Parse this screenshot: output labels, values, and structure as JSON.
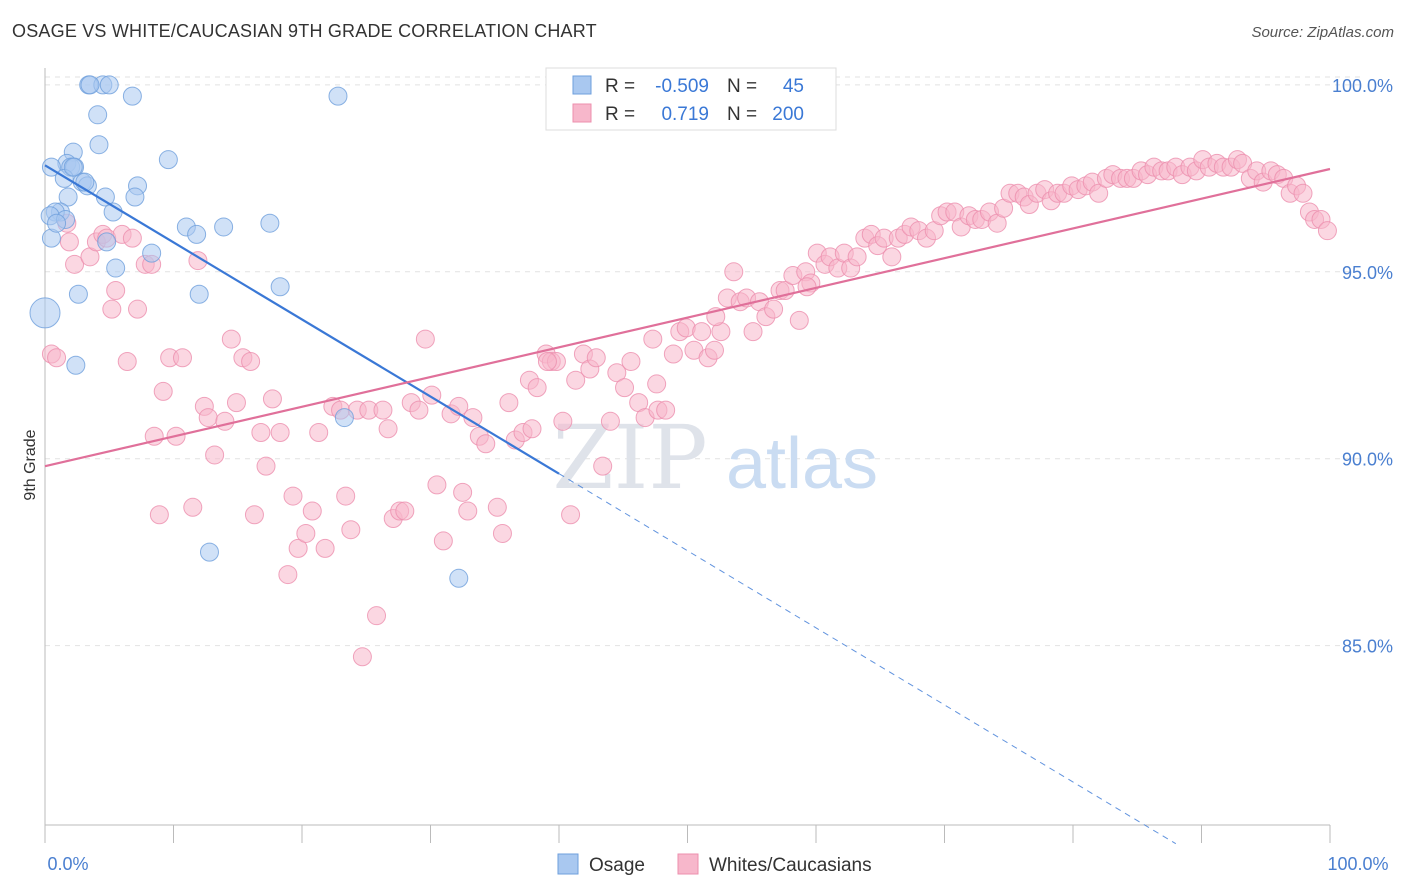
{
  "header": {
    "title": "OSAGE VS WHITE/CAUCASIAN 9TH GRADE CORRELATION CHART",
    "source": "Source: ZipAtlas.com"
  },
  "watermark": {
    "zip": "ZIP",
    "atlas": "atlas"
  },
  "legend_top": {
    "rows": [
      {
        "r_label": "R =",
        "r_value": "-0.509",
        "n_label": "N =",
        "n_value": "45",
        "color": "#a9c8f0"
      },
      {
        "r_label": "R =",
        "r_value": "0.719",
        "n_label": "N =",
        "n_value": "200",
        "color": "#f7b7cb"
      }
    ]
  },
  "colors": {
    "osage_fill": "#a9c8f0",
    "osage_stroke": "#6e9fdc",
    "osage_line": "#3a78d6",
    "white_fill": "#f7b7cb",
    "white_stroke": "#ec8fae",
    "white_line": "#e0709a",
    "tick_label": "#4a7fd0",
    "grid": "#e2e2e2"
  },
  "chart_data": {
    "type": "scatter",
    "title": "OSAGE VS WHITE/CAUCASIAN 9TH GRADE CORRELATION CHART",
    "xlabel": "",
    "ylabel": "9th Grade",
    "xlim": [
      0,
      100
    ],
    "ylim": [
      80.2,
      100.8
    ],
    "x_tick_labels": [
      "0.0%",
      "100.0%"
    ],
    "y_ticks": [
      85,
      90,
      95,
      100
    ],
    "y_tick_labels": [
      "85.0%",
      "90.0%",
      "95.0%",
      "100.0%"
    ],
    "grid": true,
    "legend_position": "top-center and bottom",
    "series": [
      {
        "name": "Osage",
        "r": -0.509,
        "n": 45,
        "trend": {
          "x0": 0,
          "y0": 97.85,
          "x1": 40,
          "y1": 89.6,
          "dash_to_x": 88
        },
        "points": [
          [
            3.4,
            100
          ],
          [
            4.5,
            100
          ],
          [
            5,
            100
          ],
          [
            3.5,
            100
          ],
          [
            6.8,
            99.7
          ],
          [
            22.8,
            99.7
          ],
          [
            4.1,
            99.2
          ],
          [
            4.2,
            98.4
          ],
          [
            2.2,
            98.2
          ],
          [
            9.6,
            98
          ],
          [
            1.7,
            97.9
          ],
          [
            2,
            97.8
          ],
          [
            0.5,
            97.8
          ],
          [
            2.3,
            97.8
          ],
          [
            1.5,
            97.5
          ],
          [
            2.9,
            97.4
          ],
          [
            7.2,
            97.3
          ],
          [
            3.3,
            97.3
          ],
          [
            1.8,
            97
          ],
          [
            4.7,
            97
          ],
          [
            7,
            97
          ],
          [
            1.2,
            96.6
          ],
          [
            0.8,
            96.6
          ],
          [
            0.4,
            96.5
          ],
          [
            5.3,
            96.6
          ],
          [
            11,
            96.2
          ],
          [
            13.9,
            96.2
          ],
          [
            17.5,
            96.3
          ],
          [
            11.8,
            96
          ],
          [
            0.5,
            95.9
          ],
          [
            4.8,
            95.8
          ],
          [
            8.3,
            95.5
          ],
          [
            5.5,
            95.1
          ],
          [
            18.3,
            94.6
          ],
          [
            12,
            94.4
          ],
          [
            2.6,
            94.4
          ],
          [
            0,
            93.9
          ],
          [
            2.4,
            92.5
          ],
          [
            23.3,
            91.1
          ],
          [
            12.8,
            87.5
          ],
          [
            32.2,
            86.8
          ],
          [
            1.6,
            96.4
          ],
          [
            2.2,
            97.8
          ],
          [
            0.9,
            96.3
          ],
          [
            3.1,
            97.4
          ]
        ]
      },
      {
        "name": "Whites/Caucasians",
        "r": 0.719,
        "n": 200,
        "trend": {
          "x0": 0,
          "y0": 89.8,
          "x1": 100,
          "y1": 97.75
        },
        "points": [
          [
            0.5,
            92.8
          ],
          [
            0.9,
            92.7
          ],
          [
            1.7,
            96.3
          ],
          [
            1.9,
            95.8
          ],
          [
            2.3,
            95.2
          ],
          [
            3.5,
            95.4
          ],
          [
            4,
            95.8
          ],
          [
            4.5,
            96
          ],
          [
            4.8,
            95.9
          ],
          [
            5.2,
            94
          ],
          [
            5.5,
            94.5
          ],
          [
            6,
            96
          ],
          [
            6.4,
            92.6
          ],
          [
            6.8,
            95.9
          ],
          [
            7.2,
            94
          ],
          [
            7.8,
            95.2
          ],
          [
            8.3,
            95.2
          ],
          [
            8.5,
            90.6
          ],
          [
            8.9,
            88.5
          ],
          [
            9.2,
            91.8
          ],
          [
            9.7,
            92.7
          ],
          [
            10.2,
            90.6
          ],
          [
            10.7,
            92.7
          ],
          [
            11.5,
            88.7
          ],
          [
            11.9,
            95.3
          ],
          [
            12.4,
            91.4
          ],
          [
            12.7,
            91.1
          ],
          [
            13.2,
            90.1
          ],
          [
            14,
            91
          ],
          [
            14.5,
            93.2
          ],
          [
            14.9,
            91.5
          ],
          [
            15.4,
            92.7
          ],
          [
            16,
            92.6
          ],
          [
            16.3,
            88.5
          ],
          [
            16.8,
            90.7
          ],
          [
            17.2,
            89.8
          ],
          [
            17.7,
            91.6
          ],
          [
            18.3,
            90.7
          ],
          [
            18.9,
            86.9
          ],
          [
            19.3,
            89
          ],
          [
            19.7,
            87.6
          ],
          [
            20.3,
            88
          ],
          [
            20.8,
            88.6
          ],
          [
            21.3,
            90.7
          ],
          [
            21.8,
            87.6
          ],
          [
            22.4,
            91.4
          ],
          [
            23,
            91.3
          ],
          [
            23.4,
            89
          ],
          [
            23.8,
            88.1
          ],
          [
            24.3,
            91.3
          ],
          [
            24.7,
            84.7
          ],
          [
            25.2,
            91.3
          ],
          [
            25.8,
            85.8
          ],
          [
            26.3,
            91.3
          ],
          [
            26.7,
            90.8
          ],
          [
            27.1,
            88.4
          ],
          [
            27.6,
            88.6
          ],
          [
            28,
            88.6
          ],
          [
            28.5,
            91.5
          ],
          [
            29.1,
            91.3
          ],
          [
            29.6,
            93.2
          ],
          [
            30.1,
            91.7
          ],
          [
            30.5,
            89.3
          ],
          [
            31,
            87.8
          ],
          [
            31.6,
            91.2
          ],
          [
            32.2,
            91.4
          ],
          [
            32.5,
            89.1
          ],
          [
            32.9,
            88.6
          ],
          [
            33.3,
            91.1
          ],
          [
            33.8,
            90.6
          ],
          [
            34.3,
            90.4
          ],
          [
            35.2,
            88.7
          ],
          [
            35.6,
            88
          ],
          [
            36.1,
            91.5
          ],
          [
            36.6,
            90.5
          ],
          [
            37.2,
            90.7
          ],
          [
            37.7,
            92.1
          ],
          [
            38.3,
            91.9
          ],
          [
            39,
            92.8
          ],
          [
            39.4,
            92.6
          ],
          [
            39.8,
            92.6
          ],
          [
            40.3,
            91
          ],
          [
            40.9,
            88.5
          ],
          [
            41.3,
            92.1
          ],
          [
            41.9,
            92.8
          ],
          [
            42.4,
            92.4
          ],
          [
            42.9,
            92.7
          ],
          [
            43.4,
            89.8
          ],
          [
            44,
            91
          ],
          [
            44.5,
            92.3
          ],
          [
            45.1,
            91.9
          ],
          [
            45.6,
            92.6
          ],
          [
            46.2,
            91.5
          ],
          [
            46.7,
            91.1
          ],
          [
            47.3,
            93.2
          ],
          [
            47.7,
            91.3
          ],
          [
            48.3,
            91.3
          ],
          [
            48.9,
            92.8
          ],
          [
            49.4,
            93.4
          ],
          [
            49.9,
            93.5
          ],
          [
            50.5,
            92.9
          ],
          [
            51.1,
            93.4
          ],
          [
            51.6,
            92.7
          ],
          [
            52.1,
            92.9
          ],
          [
            52.6,
            93.4
          ],
          [
            53.1,
            94.3
          ],
          [
            53.6,
            95
          ],
          [
            54.1,
            94.2
          ],
          [
            54.6,
            94.3
          ],
          [
            55.1,
            93.4
          ],
          [
            55.6,
            94.2
          ],
          [
            56.1,
            93.8
          ],
          [
            56.7,
            94
          ],
          [
            57.2,
            94.5
          ],
          [
            57.6,
            94.5
          ],
          [
            58.2,
            94.9
          ],
          [
            58.7,
            93.7
          ],
          [
            59.2,
            95
          ],
          [
            59.6,
            94.7
          ],
          [
            60.1,
            95.5
          ],
          [
            60.7,
            95.2
          ],
          [
            61.1,
            95.4
          ],
          [
            61.7,
            95.1
          ],
          [
            62.2,
            95.5
          ],
          [
            62.7,
            95.1
          ],
          [
            63.2,
            95.4
          ],
          [
            63.8,
            95.9
          ],
          [
            64.3,
            96
          ],
          [
            64.8,
            95.7
          ],
          [
            65.3,
            95.9
          ],
          [
            65.9,
            95.4
          ],
          [
            66.4,
            95.9
          ],
          [
            66.9,
            96
          ],
          [
            67.4,
            96.2
          ],
          [
            68,
            96.1
          ],
          [
            68.6,
            95.9
          ],
          [
            69.2,
            96.1
          ],
          [
            69.7,
            96.5
          ],
          [
            70.2,
            96.6
          ],
          [
            70.8,
            96.6
          ],
          [
            71.3,
            96.2
          ],
          [
            71.9,
            96.5
          ],
          [
            72.4,
            96.4
          ],
          [
            72.9,
            96.4
          ],
          [
            73.5,
            96.6
          ],
          [
            74.1,
            96.3
          ],
          [
            74.6,
            96.7
          ],
          [
            75.1,
            97.1
          ],
          [
            75.7,
            97.1
          ],
          [
            76.2,
            97
          ],
          [
            76.6,
            96.8
          ],
          [
            77.2,
            97.1
          ],
          [
            77.8,
            97.2
          ],
          [
            78.3,
            96.9
          ],
          [
            78.8,
            97.1
          ],
          [
            79.3,
            97.1
          ],
          [
            79.9,
            97.3
          ],
          [
            80.4,
            97.2
          ],
          [
            81,
            97.3
          ],
          [
            81.5,
            97.4
          ],
          [
            82,
            97.1
          ],
          [
            82.6,
            97.5
          ],
          [
            83.1,
            97.6
          ],
          [
            83.7,
            97.5
          ],
          [
            84.2,
            97.5
          ],
          [
            84.7,
            97.5
          ],
          [
            85.3,
            97.7
          ],
          [
            85.8,
            97.6
          ],
          [
            86.3,
            97.8
          ],
          [
            86.9,
            97.7
          ],
          [
            87.4,
            97.7
          ],
          [
            88,
            97.8
          ],
          [
            88.5,
            97.6
          ],
          [
            89.1,
            97.8
          ],
          [
            89.6,
            97.7
          ],
          [
            90.1,
            98
          ],
          [
            90.6,
            97.8
          ],
          [
            91.2,
            97.9
          ],
          [
            91.7,
            97.8
          ],
          [
            92.3,
            97.8
          ],
          [
            92.8,
            98
          ],
          [
            93.2,
            97.9
          ],
          [
            93.8,
            97.5
          ],
          [
            94.3,
            97.7
          ],
          [
            94.8,
            97.4
          ],
          [
            95.4,
            97.7
          ],
          [
            95.9,
            97.6
          ],
          [
            96.4,
            97.5
          ],
          [
            96.9,
            97.1
          ],
          [
            97.4,
            97.3
          ],
          [
            97.9,
            97.1
          ],
          [
            98.4,
            96.6
          ],
          [
            98.8,
            96.4
          ],
          [
            99.3,
            96.4
          ],
          [
            99.8,
            96.1
          ],
          [
            37.9,
            90.8
          ],
          [
            39.1,
            92.6
          ],
          [
            47.6,
            92
          ],
          [
            52.2,
            93.8
          ],
          [
            59.3,
            94.6
          ]
        ]
      }
    ]
  },
  "legend_bottom": {
    "items": [
      {
        "label": "Osage",
        "color": "#a9c8f0"
      },
      {
        "label": "Whites/Caucasians",
        "color": "#f7b7cb"
      }
    ]
  }
}
